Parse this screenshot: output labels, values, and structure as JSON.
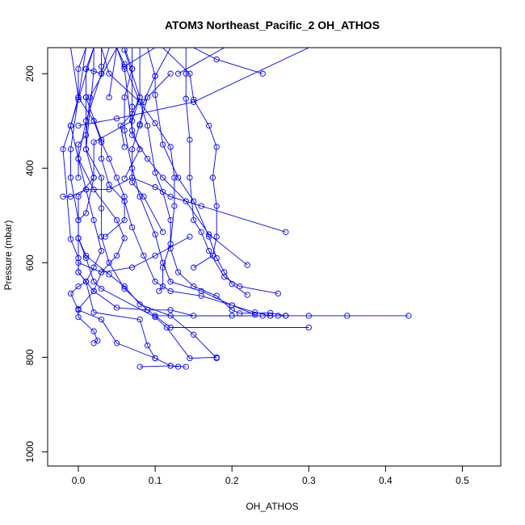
{
  "chart_data": {
    "type": "scatter",
    "title": "ATOM3 Northeast_Pacific_2 OH_ATHOS",
    "xlabel": "OH_ATHOS",
    "ylabel": "Pressure (mbar)",
    "xlim": [
      -0.04,
      0.55
    ],
    "ylim": [
      1030,
      145
    ],
    "y_reversed": true,
    "x_ticks": [
      0.0,
      0.1,
      0.2,
      0.3,
      0.4,
      0.5
    ],
    "x_tick_labels": [
      "0.0",
      "0.1",
      "0.2",
      "0.3",
      "0.4",
      "0.5"
    ],
    "y_ticks": [
      200,
      400,
      600,
      800,
      1000
    ],
    "y_tick_labels": [
      "200",
      "400",
      "600",
      "800",
      "1000"
    ],
    "grid": false,
    "marker": "open-circle",
    "line_color": "#0000ff",
    "series": [
      {
        "points": [
          [
            0.13,
            820
          ],
          [
            0.12,
            818
          ],
          [
            0.1,
            802
          ],
          [
            0.09,
            775
          ],
          [
            0.08,
            720
          ],
          [
            0.02,
            705
          ],
          [
            0.01,
            640
          ],
          [
            0.0,
            620
          ],
          [
            0.0,
            590
          ],
          [
            -0.01,
            550
          ],
          [
            -0.02,
            360
          ],
          [
            -0.01,
            310
          ],
          [
            0.0,
            250
          ]
        ]
      },
      {
        "points": [
          [
            0.08,
            820
          ],
          [
            0.12,
            818
          ],
          [
            0.14,
            820
          ]
        ]
      },
      {
        "points": [
          [
            0.18,
            802
          ],
          [
            0.15,
            752
          ],
          [
            0.12,
            712
          ],
          [
            0.08,
            688
          ],
          [
            0.06,
            650
          ],
          [
            0.04,
            625
          ],
          [
            0.01,
            585
          ],
          [
            0.0,
            548
          ],
          [
            0.0,
            510
          ],
          [
            0.01,
            495
          ],
          [
            0.02,
            420
          ],
          [
            0.01,
            360
          ],
          [
            0.01,
            250
          ],
          [
            0.01,
            190
          ],
          [
            0.02,
            145
          ]
        ]
      },
      {
        "points": [
          [
            0.1,
            802
          ],
          [
            0.05,
            770
          ],
          [
            0.03,
            720
          ],
          [
            0.0,
            700
          ],
          [
            -0.01,
            665
          ],
          [
            0.0,
            650
          ],
          [
            0.01,
            640
          ],
          [
            0.02,
            610
          ],
          [
            0.03,
            575
          ],
          [
            0.02,
            510
          ],
          [
            0.01,
            445
          ],
          [
            0.0,
            380
          ],
          [
            -0.01,
            310
          ],
          [
            0.02,
            145
          ]
        ]
      },
      {
        "points": [
          [
            0.02,
            770
          ],
          [
            0.025,
            765
          ],
          [
            0.02,
            745
          ],
          [
            0.0,
            715
          ],
          [
            0.0,
            698
          ],
          [
            0.02,
            660
          ],
          [
            0.03,
            620
          ],
          [
            0.05,
            585
          ],
          [
            0.06,
            548
          ],
          [
            0.05,
            510
          ],
          [
            0.02,
            445
          ],
          [
            0.0,
            380
          ],
          [
            0.01,
            300
          ],
          [
            0.03,
            200
          ],
          [
            0.03,
            185
          ],
          [
            0.03,
            145
          ]
        ]
      },
      {
        "points": [
          [
            0.18,
            800
          ],
          [
            0.145,
            802
          ],
          [
            0.115,
            737
          ],
          [
            0.1,
            715
          ],
          [
            0.03,
            655
          ],
          [
            0.02,
            640
          ],
          [
            0.01,
            590
          ],
          [
            0.0,
            548
          ],
          [
            0.0,
            460
          ],
          [
            0.02,
            420
          ],
          [
            0.02,
            345
          ],
          [
            0.07,
            300
          ],
          [
            0.08,
            250
          ],
          [
            0.08,
            145
          ]
        ]
      },
      {
        "points": [
          [
            0.3,
            737
          ],
          [
            0.12,
            737
          ],
          [
            0.09,
            700
          ],
          [
            0.06,
            655
          ],
          [
            0.04,
            600
          ],
          [
            0.03,
            545
          ],
          [
            0.03,
            485
          ],
          [
            0.03,
            420
          ],
          [
            0.01,
            360
          ],
          [
            0.02,
            195
          ],
          [
            0.02,
            145
          ]
        ]
      },
      {
        "points": [
          [
            0.43,
            712
          ],
          [
            0.35,
            712
          ],
          [
            0.3,
            712
          ],
          [
            0.27,
            712
          ],
          [
            0.25,
            712
          ],
          [
            0.2,
            712
          ],
          [
            0.15,
            712
          ],
          [
            0.12,
            700
          ],
          [
            0.09,
            700
          ],
          [
            0.05,
            695
          ],
          [
            0.02,
            660
          ],
          [
            0.0,
            620
          ],
          [
            0.0,
            548
          ],
          [
            0.0,
            510
          ],
          [
            -0.01,
            420
          ],
          [
            -0.01,
            360
          ],
          [
            0.0,
            250
          ],
          [
            0.0,
            190
          ],
          [
            0.01,
            145
          ]
        ]
      },
      {
        "points": [
          [
            0.24,
            712
          ],
          [
            0.27,
            712
          ],
          [
            0.25,
            706
          ],
          [
            0.21,
            707
          ],
          [
            0.2,
            700
          ],
          [
            0.18,
            670
          ],
          [
            0.15,
            650
          ],
          [
            0.13,
            620
          ],
          [
            0.12,
            570
          ],
          [
            0.12,
            510
          ],
          [
            0.11,
            450
          ],
          [
            0.1,
            410
          ],
          [
            0.09,
            310
          ],
          [
            0.08,
            260
          ],
          [
            0.06,
            180
          ],
          [
            0.05,
            145
          ]
        ]
      },
      {
        "points": [
          [
            0.25,
            712
          ],
          [
            0.23,
            705
          ],
          [
            0.2,
            690
          ],
          [
            0.16,
            660
          ],
          [
            0.12,
            640
          ],
          [
            0.11,
            600
          ],
          [
            0.1,
            540
          ],
          [
            0.08,
            460
          ],
          [
            0.07,
            400
          ],
          [
            0.06,
            320
          ],
          [
            0.06,
            250
          ],
          [
            0.07,
            190
          ],
          [
            0.07,
            145
          ]
        ]
      },
      {
        "points": [
          [
            0.26,
            665
          ],
          [
            0.21,
            650
          ],
          [
            0.19,
            630
          ],
          [
            0.17,
            575
          ],
          [
            0.16,
            535
          ],
          [
            0.15,
            510
          ],
          [
            0.145,
            420
          ],
          [
            0.145,
            340
          ],
          [
            0.14,
            253
          ],
          [
            0.14,
            200
          ],
          [
            0.14,
            145
          ]
        ]
      },
      {
        "points": [
          [
            0.22,
            668
          ],
          [
            0.2,
            645
          ],
          [
            0.19,
            620
          ],
          [
            0.18,
            590
          ],
          [
            0.17,
            545
          ],
          [
            0.15,
            470
          ],
          [
            0.13,
            420
          ],
          [
            0.11,
            350
          ],
          [
            0.1,
            245
          ],
          [
            0.1,
            205
          ],
          [
            0.09,
            145
          ]
        ]
      },
      {
        "points": [
          [
            0.23,
            710
          ],
          [
            0.2,
            690
          ],
          [
            0.16,
            670
          ],
          [
            0.12,
            660
          ],
          [
            0.1,
            640
          ],
          [
            0.085,
            585
          ],
          [
            0.07,
            525
          ],
          [
            0.06,
            470
          ],
          [
            0.04,
            435
          ],
          [
            0.03,
            380
          ],
          [
            0.03,
            340
          ],
          [
            0.01,
            250
          ]
        ]
      },
      {
        "points": [
          [
            0.15,
            610
          ],
          [
            0.175,
            585
          ],
          [
            0.18,
            545
          ],
          [
            0.18,
            480
          ],
          [
            0.175,
            420
          ],
          [
            0.18,
            355
          ],
          [
            0.17,
            310
          ],
          [
            0.15,
            255
          ],
          [
            0.145,
            200
          ],
          [
            0.11,
            145
          ]
        ]
      },
      {
        "points": [
          [
            0.22,
            605
          ],
          [
            0.17,
            540
          ],
          [
            0.14,
            470
          ],
          [
            0.11,
            420
          ],
          [
            0.09,
            380
          ],
          [
            0.07,
            330
          ],
          [
            0.07,
            270
          ],
          [
            0.07,
            190
          ],
          [
            0.06,
            145
          ]
        ]
      },
      {
        "points": [
          [
            0.105,
            660
          ],
          [
            0.11,
            650
          ],
          [
            0.11,
            610
          ],
          [
            0.12,
            560
          ],
          [
            0.125,
            480
          ],
          [
            0.125,
            420
          ],
          [
            0.12,
            355
          ],
          [
            0.1,
            305
          ],
          [
            0.08,
            260
          ],
          [
            0.04,
            200
          ],
          [
            0.03,
            145
          ]
        ]
      },
      {
        "points": [
          [
            0.27,
            535
          ],
          [
            0.16,
            480
          ],
          [
            0.12,
            460
          ],
          [
            0.1,
            440
          ],
          [
            0.07,
            420
          ],
          [
            0.04,
            445
          ],
          [
            0.01,
            445
          ],
          [
            -0.01,
            460
          ],
          [
            -0.02,
            460
          ]
        ]
      },
      {
        "points": [
          [
            0.145,
            545
          ],
          [
            0.1,
            585
          ],
          [
            0.07,
            610
          ],
          [
            0.03,
            620
          ],
          [
            0.0,
            600
          ]
        ]
      },
      {
        "points": [
          [
            0.11,
            535
          ],
          [
            0.085,
            460
          ],
          [
            0.07,
            430
          ],
          [
            0.07,
            360
          ],
          [
            0.08,
            307
          ],
          [
            0.09,
            250
          ],
          [
            0.12,
            200
          ]
        ]
      },
      {
        "points": [
          [
            0.26,
            712
          ],
          [
            0.1,
            712
          ]
        ]
      },
      {
        "points": [
          [
            0.24,
            200
          ],
          [
            0.18,
            170
          ],
          [
            0.15,
            145
          ]
        ]
      },
      {
        "points": [
          [
            0.0,
            310
          ],
          [
            0.05,
            295
          ],
          [
            0.15,
            260
          ],
          [
            0.3,
            145
          ]
        ]
      },
      {
        "points": [
          [
            0.13,
            200
          ],
          [
            0.19,
            145
          ]
        ]
      },
      {
        "points": [
          [
            0.04,
            250
          ],
          [
            0.05,
            145
          ]
        ]
      },
      {
        "points": [
          [
            0.06,
            185
          ],
          [
            0.1,
            145
          ]
        ]
      },
      {
        "points": [
          [
            0.04,
            145
          ],
          [
            0.03,
            200
          ],
          [
            0.01,
            190
          ]
        ]
      },
      {
        "points": [
          [
            0.0,
            255
          ],
          [
            0.01,
            145
          ]
        ]
      },
      {
        "points": [
          [
            0.06,
            355
          ],
          [
            0.055,
            310
          ],
          [
            0.07,
            285
          ],
          [
            0.08,
            250
          ],
          [
            0.06,
            150
          ]
        ]
      },
      {
        "points": [
          [
            0.08,
            310
          ],
          [
            0.085,
            260
          ],
          [
            0.1,
            205
          ],
          [
            0.12,
            145
          ]
        ]
      },
      {
        "points": [
          [
            0.0,
            420
          ],
          [
            0.0,
            350
          ],
          [
            0.01,
            330
          ],
          [
            0.015,
            250
          ],
          [
            0.05,
            145
          ]
        ]
      },
      {
        "points": [
          [
            0.06,
            422
          ],
          [
            0.08,
            360
          ],
          [
            0.07,
            320
          ],
          [
            0.06,
            190
          ],
          [
            0.05,
            145
          ]
        ]
      },
      {
        "points": [
          [
            0.035,
            545
          ],
          [
            0.06,
            510
          ],
          [
            0.06,
            460
          ],
          [
            0.05,
            420
          ],
          [
            0.04,
            380
          ],
          [
            0.03,
            345
          ],
          [
            0.02,
            300
          ],
          [
            0.0,
            250
          ],
          [
            -0.01,
            145
          ]
        ]
      }
    ]
  }
}
